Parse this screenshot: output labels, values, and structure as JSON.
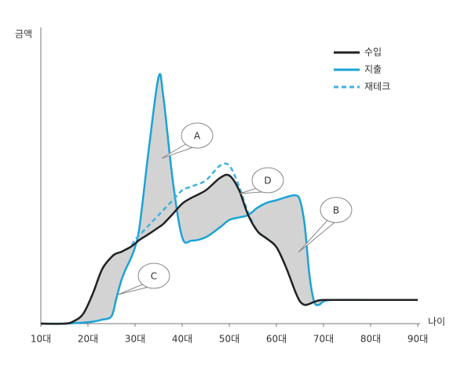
{
  "chart_data": {
    "type": "line",
    "y_label": "금액",
    "x_label": "나이",
    "x": [
      10,
      15,
      17,
      19,
      21,
      23,
      25,
      26,
      27,
      28,
      29,
      30,
      31,
      33,
      35,
      36,
      38,
      40,
      42,
      45,
      48,
      50,
      52,
      54,
      56,
      58,
      60,
      62,
      64,
      65,
      66,
      67,
      68,
      69,
      70,
      72,
      80,
      90
    ],
    "xlim": [
      10,
      90
    ],
    "xticks": [
      {
        "value": 10,
        "label": "10대"
      },
      {
        "value": 20,
        "label": "20대"
      },
      {
        "value": 30,
        "label": "30대"
      },
      {
        "value": 40,
        "label": "40대"
      },
      {
        "value": 50,
        "label": "50대"
      },
      {
        "value": 60,
        "label": "60대"
      },
      {
        "value": 70,
        "label": "70대"
      },
      {
        "value": 80,
        "label": "80대"
      },
      {
        "value": 90,
        "label": "90대"
      }
    ],
    "ylim": [
      0,
      6
    ],
    "series": [
      {
        "name": "수입",
        "color": "#222222",
        "dash": false,
        "values": [
          0,
          0,
          0.05,
          0.2,
          0.6,
          1.1,
          1.35,
          1.42,
          1.45,
          1.5,
          1.55,
          1.62,
          1.7,
          1.82,
          1.95,
          2.02,
          2.22,
          2.43,
          2.55,
          2.7,
          2.95,
          3.0,
          2.72,
          2.2,
          1.87,
          1.72,
          1.55,
          1.15,
          0.65,
          0.45,
          0.38,
          0.4,
          0.44,
          0.47,
          0.48,
          0.48,
          0.48,
          0.48
        ]
      },
      {
        "name": "지출",
        "color": "#1ba3d6",
        "dash": false,
        "values": [
          0,
          0,
          0.01,
          0.02,
          0.04,
          0.08,
          0.15,
          0.5,
          0.85,
          1.1,
          1.3,
          1.55,
          2.0,
          3.6,
          5.0,
          4.6,
          2.9,
          1.75,
          1.68,
          1.75,
          1.95,
          2.1,
          2.15,
          2.2,
          2.35,
          2.45,
          2.5,
          2.56,
          2.6,
          2.5,
          2.0,
          1.0,
          0.45,
          0.38,
          0.45,
          0.48,
          0.48,
          0.48
        ]
      },
      {
        "name": "재테크",
        "color": "#3fb2e0",
        "dash": true,
        "values": [
          0,
          0,
          0.05,
          0.2,
          0.6,
          1.1,
          1.35,
          1.42,
          1.45,
          1.5,
          1.55,
          1.7,
          1.8,
          2.0,
          2.2,
          2.3,
          2.5,
          2.7,
          2.78,
          2.9,
          3.2,
          3.2,
          2.8,
          2.25,
          1.87,
          1.72,
          1.55,
          1.15,
          0.65,
          0.45,
          0.38,
          0.4,
          0.44,
          0.47,
          0.48,
          0.48,
          0.48,
          0.48
        ]
      }
    ],
    "shade_between": [
      0,
      1
    ],
    "annotations": [
      "A",
      "D",
      "B",
      "C"
    ]
  }
}
